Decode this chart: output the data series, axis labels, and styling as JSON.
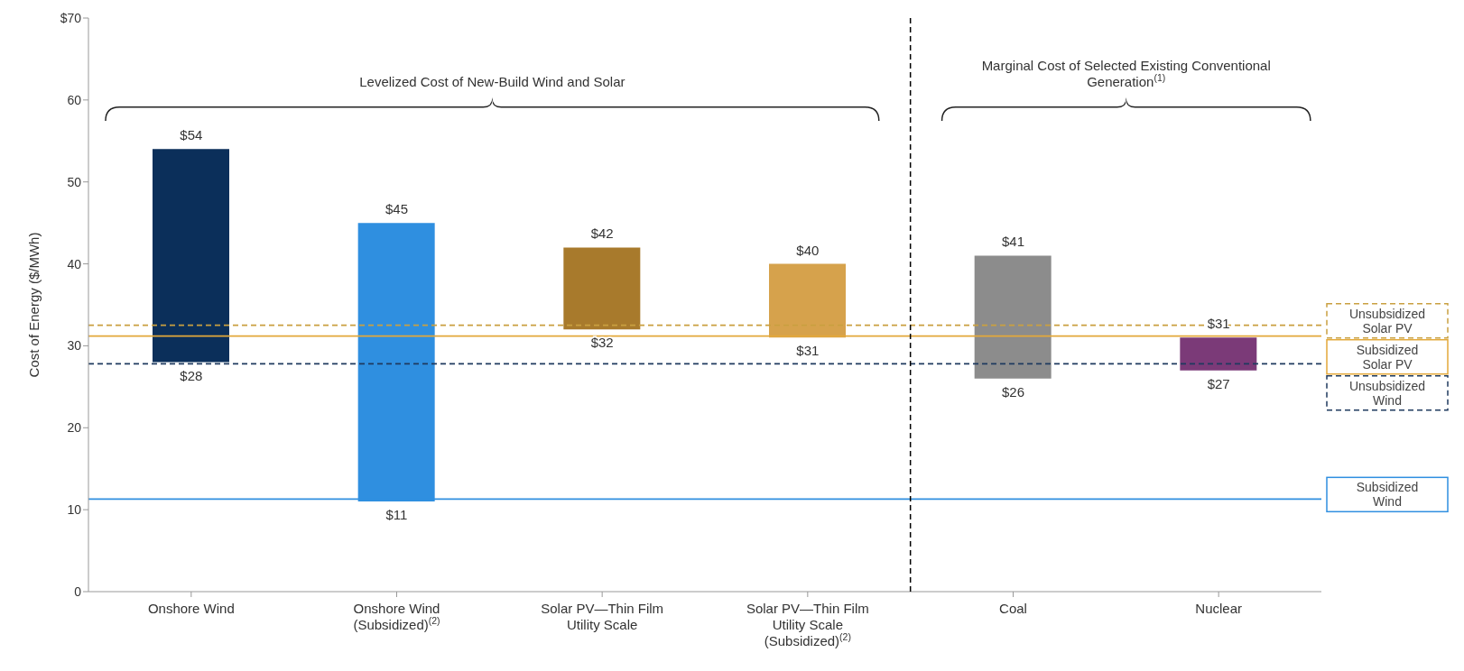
{
  "chart_data": {
    "type": "bar",
    "ylabel": "Cost of Energy ($/MWh)",
    "categories": [
      "Onshore Wind",
      "Onshore Wind (Subsidized)$^{(2)}$",
      "Solar PV—Thin Film Utility Scale",
      "Solar PV—Thin Film Utility Scale (Subsidized)$^{(2)}$",
      "Coal",
      "Nuclear"
    ],
    "base": [
      28,
      11,
      32,
      31,
      26,
      27
    ],
    "values": [
      26,
      34,
      10,
      9,
      15,
      4
    ],
    "colors": [
      "#0b2f5a",
      "#2f8fe0",
      "#a87a2c",
      "#d6a24c",
      "#8c8c8c",
      "#7b3a78"
    ],
    "ylim": [
      0,
      70
    ],
    "yticks": [
      0,
      10,
      20,
      30,
      40,
      50,
      60,
      {
        "value": 70,
        "label": "$70"
      }
    ],
    "grid": false,
    "ref_lines": [
      {
        "axis": "y",
        "value": 32.5,
        "label": "Unsubsidized Solar PV",
        "color": "#c9a040",
        "line_style": "dashed"
      },
      {
        "axis": "y",
        "value": 31.2,
        "label": "Subsidized Solar PV",
        "color": "#e3a83a",
        "line_style": "solid"
      },
      {
        "axis": "y",
        "value": 27.8,
        "label": "Unsubsidized Wind",
        "color": "#1f3a5f",
        "line_style": "dashed"
      },
      {
        "axis": "y",
        "value": 11.3,
        "label": "Subsidized Wind",
        "color": "#2f8fe0",
        "line_style": "solid"
      }
    ],
    "annotations": [
      "Levelized Cost of New-Build Wind and Solar",
      "Marginal Cost of Selected Existing Conventional Generation$^{(1)}$",
      {
        "text": "$54",
        "x": "Onshore Wind",
        "y": 54
      },
      {
        "text": "$28",
        "x": "Onshore Wind",
        "y": 28
      },
      {
        "text": "$45",
        "x": "Onshore Wind (Subsidized)$^{(2)}$",
        "y": 45
      },
      {
        "text": "$11",
        "x": "Onshore Wind (Subsidized)$^{(2)}$",
        "y": 11
      },
      {
        "text": "$42",
        "x": "Solar PV—Thin Film Utility Scale",
        "y": 42
      },
      {
        "text": "$32",
        "x": "Solar PV—Thin Film Utility Scale",
        "y": 32
      },
      {
        "text": "$40",
        "x": "Solar PV—Thin Film Utility Scale (Subsidized)$^{(2)}$",
        "y": 40
      },
      {
        "text": "$31",
        "x": "Solar PV—Thin Film Utility Scale (Subsidized)$^{(2)}$",
        "y": 31
      },
      {
        "text": "$41",
        "x": "Coal",
        "y": 41
      },
      {
        "text": "$26",
        "x": "Coal",
        "y": 26
      },
      {
        "text": "$31",
        "x": "Nuclear",
        "y": 31
      },
      {
        "text": "$27",
        "x": "Nuclear",
        "y": 27
      }
    ]
  }
}
